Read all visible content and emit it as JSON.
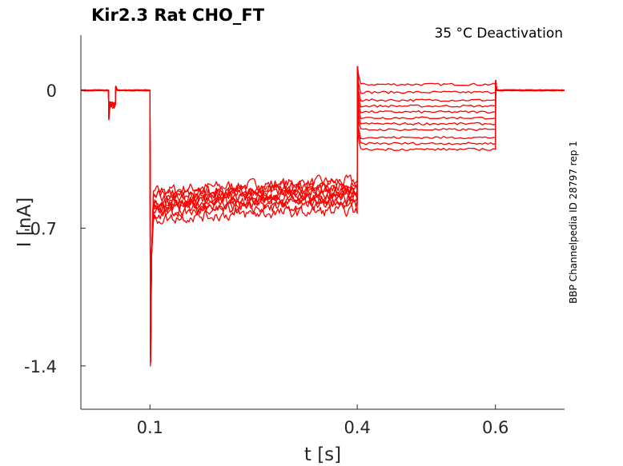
{
  "chart_data": {
    "type": "line",
    "title": "Kir2.3  Rat  CHO_FT",
    "annotation": "35 °C  Deactivation",
    "side_label": "BBP Channelpedia ID 28797 rep 1",
    "xlabel": "t [s]",
    "ylabel": "I [nA]",
    "xlim": [
      0.0,
      0.7
    ],
    "ylim": [
      -1.62,
      0.28
    ],
    "x_ticks": [
      0.1,
      0.4,
      0.6
    ],
    "x_tick_labels": [
      "0.1",
      "0.4",
      "0.6"
    ],
    "y_ticks": [
      0,
      -0.7,
      -1.4
    ],
    "y_tick_labels": [
      "0",
      "-0.7",
      "-1.4"
    ],
    "grid": false,
    "line_color": "#ff0000",
    "phases_s": {
      "prepulse": [
        0.04,
        0.05
      ],
      "activation": [
        0.1,
        0.4
      ],
      "deactivation": [
        0.4,
        0.6
      ],
      "end": 0.7
    },
    "series": [
      {
        "prepulse": -0.12,
        "act_start": -0.52,
        "act_end": -0.46,
        "deact": 0.03
      },
      {
        "prepulse": -0.13,
        "act_start": -0.55,
        "act_end": -0.48,
        "deact": -0.01
      },
      {
        "prepulse": -0.14,
        "act_start": -0.57,
        "act_end": -0.49,
        "deact": -0.05
      },
      {
        "prepulse": -0.15,
        "act_start": -0.59,
        "act_end": -0.51,
        "deact": -0.08
      },
      {
        "prepulse": -0.12,
        "act_start": -0.61,
        "act_end": -0.53,
        "deact": -0.11
      },
      {
        "prepulse": -0.13,
        "act_start": -0.54,
        "act_end": -0.5,
        "deact": -0.14
      },
      {
        "prepulse": -0.14,
        "act_start": -0.6,
        "act_end": -0.55,
        "deact": -0.17
      },
      {
        "prepulse": -0.15,
        "act_start": -0.63,
        "act_end": -0.56,
        "deact": -0.2
      },
      {
        "prepulse": -0.12,
        "act_start": -0.58,
        "act_end": -0.52,
        "deact": -0.24
      },
      {
        "prepulse": -0.13,
        "act_start": -0.64,
        "act_end": -0.58,
        "deact": -0.27
      },
      {
        "prepulse": -0.14,
        "act_start": -0.66,
        "act_end": -0.61,
        "deact": -0.3
      }
    ]
  }
}
